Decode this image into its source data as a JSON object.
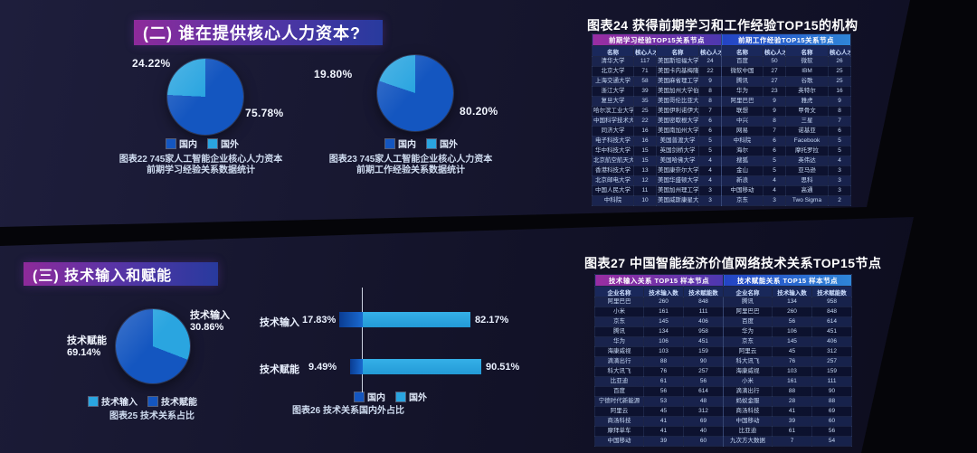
{
  "colors": {
    "dark_blue": "#1456c0",
    "light_blue": "#2aa5e0",
    "banner_purple": "#8e2a9a",
    "banner_blue": "#283a9e",
    "header_purple_from": "#9a2da2",
    "header_purple_to": "#4c38b0",
    "header_blue_from": "#2443c4",
    "header_blue_to": "#2f86d8",
    "panel_bg": "#16162c",
    "page_bg": "#050509"
  },
  "section2": {
    "banner": "(二) 谁在提供核心人力资本?",
    "chart22": {
      "pct_foreign": "24.22%",
      "pct_domestic": "75.78%",
      "legend": [
        "国内",
        "国外"
      ],
      "caption1": "图表22 745家人工智能企业核心人力资本",
      "caption2": "前期学习经验关系数据统计"
    },
    "chart23": {
      "pct_foreign": "19.80%",
      "pct_domestic": "80.20%",
      "legend": [
        "国内",
        "国外"
      ],
      "caption1": "图表23 745家人工智能企业核心人力资本",
      "caption2": "前期工作经验关系数据统计"
    }
  },
  "section3": {
    "banner": "(三) 技术输入和赋能",
    "chart25": {
      "label_input": "技术输入",
      "pct_input": "30.86%",
      "label_empower": "技术赋能",
      "pct_empower": "69.14%",
      "legend": [
        "技术输入",
        "技术赋能"
      ],
      "caption": "图表25 技术关系占比"
    },
    "chart26": {
      "row1_label": "技术输入",
      "row1_left": "17.83%",
      "row1_right": "82.17%",
      "row2_label": "技术赋能",
      "row2_left": "9.49%",
      "row2_right": "90.51%",
      "legend": [
        "国内",
        "国外"
      ],
      "caption": "图表26 技术关系国内外占比"
    }
  },
  "chart_data": [
    {
      "id": "chart22",
      "type": "pie",
      "title": "图表22 745家人工智能企业核心人力资本前期学习经验关系数据统计",
      "labels": [
        "国内",
        "国外"
      ],
      "values": [
        75.78,
        24.22
      ],
      "unit": "%",
      "colors": [
        "#1456c0",
        "#2aa5e0"
      ],
      "legend_position": "bottom"
    },
    {
      "id": "chart23",
      "type": "pie",
      "title": "图表23 745家人工智能企业核心人力资本前期工作经验关系数据统计",
      "labels": [
        "国内",
        "国外"
      ],
      "values": [
        80.2,
        19.8
      ],
      "unit": "%",
      "colors": [
        "#1456c0",
        "#2aa5e0"
      ],
      "legend_position": "bottom"
    },
    {
      "id": "chart25",
      "type": "pie",
      "title": "图表25 技术关系占比",
      "labels": [
        "技术输入",
        "技术赋能"
      ],
      "values": [
        30.86,
        69.14
      ],
      "unit": "%",
      "colors": [
        "#2aa5e0",
        "#1456c0"
      ],
      "legend_position": "bottom"
    },
    {
      "id": "chart26",
      "type": "bar",
      "title": "图表26 技术关系国内外占比",
      "orientation": "horizontal",
      "categories": [
        "技术输入",
        "技术赋能"
      ],
      "series": [
        {
          "name": "国内",
          "values": [
            17.83,
            9.49
          ]
        },
        {
          "name": "国外",
          "values": [
            82.17,
            90.51
          ]
        }
      ],
      "unit": "%",
      "xlim": [
        0,
        100
      ],
      "legend_position": "bottom"
    },
    {
      "id": "table24",
      "type": "table",
      "title": "图表24 获得前期学习和工作经验TOP15的机构",
      "group_headers": [
        "前期学习经验TOP15关系节点",
        "前期工作经验TOP15关系节点"
      ],
      "columns": [
        "名称",
        "核心人才数",
        "名称",
        "核心人才数",
        "名称",
        "核心人才数",
        "名称",
        "核心人才数"
      ],
      "rows": [
        [
          "清华大学",
          "117",
          "美国斯坦福大学",
          "24",
          "百度",
          "50",
          "微软",
          "26"
        ],
        [
          "北京大学",
          "71",
          "美国卡内基梅隆大学",
          "22",
          "微软中国",
          "27",
          "IBM",
          "25"
        ],
        [
          "上海交通大学",
          "58",
          "美国麻省理工学院",
          "9",
          "腾讯",
          "27",
          "谷歌",
          "25"
        ],
        [
          "浙江大学",
          "39",
          "美国加州大学伯克利分校",
          "8",
          "华为",
          "23",
          "英特尔",
          "16"
        ],
        [
          "复旦大学",
          "35",
          "美国哥伦比亚大学",
          "8",
          "阿里巴巴",
          "9",
          "雅虎",
          "9"
        ],
        [
          "哈尔滨工业大学",
          "25",
          "美国伊利诺伊大学",
          "7",
          "联想",
          "9",
          "甲骨文",
          "8"
        ],
        [
          "中国科学技术大学",
          "22",
          "美国密歇根大学",
          "6",
          "中兴",
          "8",
          "三星",
          "7"
        ],
        [
          "同济大学",
          "16",
          "美国南加州大学",
          "6",
          "网易",
          "7",
          "诺基亚",
          "6"
        ],
        [
          "电子科技大学",
          "16",
          "美国普渡大学",
          "5",
          "中科院",
          "6",
          "Facebook",
          "5"
        ],
        [
          "华中科技大学",
          "15",
          "英国剑桥大学",
          "5",
          "海尔",
          "6",
          "摩托罗拉",
          "5"
        ],
        [
          "北京航空航天大学",
          "15",
          "美国哈佛大学",
          "4",
          "搜狐",
          "5",
          "英伟达",
          "4"
        ],
        [
          "香港科技大学",
          "13",
          "美国康奈尔大学",
          "4",
          "金山",
          "5",
          "亚马逊",
          "3"
        ],
        [
          "北京邮电大学",
          "12",
          "美国华盛顿大学",
          "4",
          "新浪",
          "4",
          "思科",
          "3"
        ],
        [
          "中国人民大学",
          "11",
          "美国加州理工学院",
          "3",
          "中国移动",
          "4",
          "高通",
          "3"
        ],
        [
          "中科院",
          "10",
          "美国威斯康星大学",
          "3",
          "京东",
          "3",
          "Two Sigma",
          "2"
        ]
      ]
    },
    {
      "id": "table27",
      "type": "table",
      "title": "图表27 中国智能经济价值网络技术关系TOP15节点",
      "group_headers": [
        "技术输入关系 TOP15 样本节点",
        "技术赋能关系 TOP15 样本节点"
      ],
      "columns": [
        "企业名称",
        "技术输入数",
        "技术赋能数",
        "企业名称",
        "技术输入数",
        "技术赋能数"
      ],
      "rows": [
        [
          "阿里巴巴",
          "260",
          "848",
          "腾讯",
          "134",
          "958"
        ],
        [
          "小米",
          "161",
          "111",
          "阿里巴巴",
          "260",
          "848"
        ],
        [
          "京东",
          "145",
          "406",
          "百度",
          "56",
          "614"
        ],
        [
          "腾讯",
          "134",
          "958",
          "华为",
          "106",
          "451"
        ],
        [
          "华为",
          "106",
          "451",
          "京东",
          "145",
          "406"
        ],
        [
          "海康威视",
          "103",
          "159",
          "阿里云",
          "45",
          "312"
        ],
        [
          "滴滴出行",
          "88",
          "90",
          "科大讯飞",
          "76",
          "257"
        ],
        [
          "科大讯飞",
          "76",
          "257",
          "海康威视",
          "103",
          "159"
        ],
        [
          "比亚迪",
          "61",
          "56",
          "小米",
          "161",
          "111"
        ],
        [
          "百度",
          "56",
          "614",
          "滴滴出行",
          "88",
          "90"
        ],
        [
          "宁德时代新能源",
          "53",
          "48",
          "蚂蚁金服",
          "28",
          "88"
        ],
        [
          "阿里云",
          "45",
          "312",
          "商汤科技",
          "41",
          "69"
        ],
        [
          "商汤科技",
          "41",
          "69",
          "中国移动",
          "39",
          "60"
        ],
        [
          "摩拜单车",
          "41",
          "40",
          "比亚迪",
          "61",
          "56"
        ],
        [
          "中国移动",
          "39",
          "60",
          "九次方大数据",
          "7",
          "54"
        ]
      ]
    }
  ]
}
